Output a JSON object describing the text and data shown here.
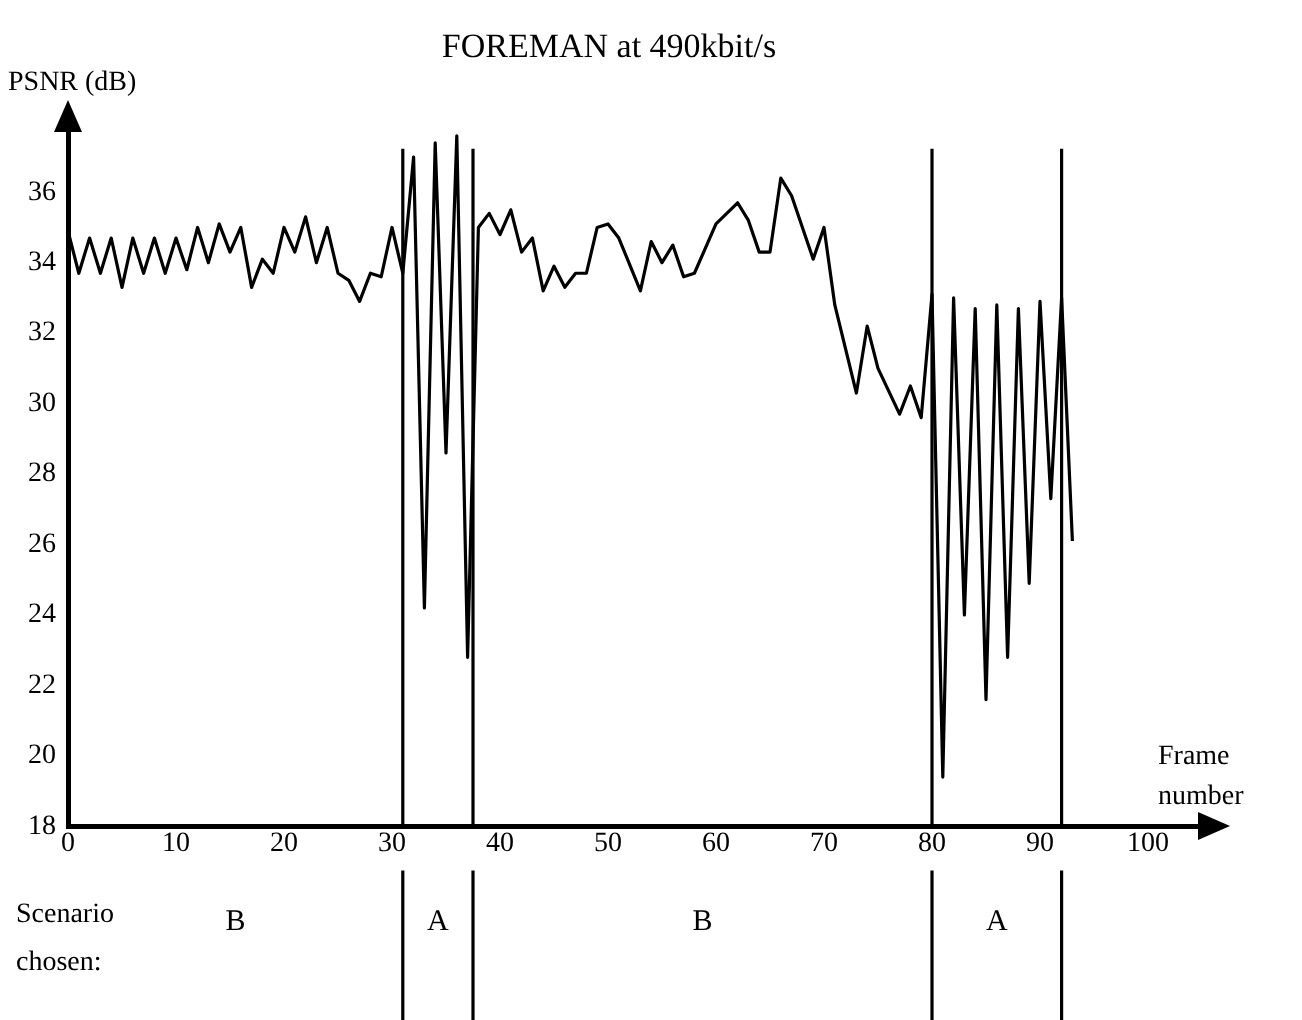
{
  "chart_data": {
    "type": "line",
    "title": "FOREMAN at 490kbit/s",
    "xlabel": "Frame number",
    "ylabel": "PSNR (dB)",
    "annotations": [
      "Scenario chosen:",
      "B",
      "A",
      "B",
      "A"
    ],
    "xlim": [
      0,
      105
    ],
    "xticks": [
      0,
      10,
      20,
      30,
      40,
      50,
      60,
      70,
      80,
      90,
      100
    ],
    "ylim": [
      18,
      37.8
    ],
    "yticks": [
      18,
      20,
      22,
      24,
      26,
      28,
      30,
      32,
      34,
      36
    ],
    "grid": false,
    "legend": false,
    "marker": "none",
    "line_style": "solid",
    "ref_lines": [
      {
        "axis": "x",
        "value": 31
      },
      {
        "axis": "x",
        "value": 37.5
      },
      {
        "axis": "x",
        "value": 80
      },
      {
        "axis": "x",
        "value": 92
      }
    ],
    "series": [
      {
        "color": "#000000",
        "x": [
          0,
          1,
          2,
          3,
          4,
          5,
          6,
          7,
          8,
          9,
          10,
          11,
          12,
          13,
          14,
          15,
          16,
          17,
          18,
          19,
          20,
          21,
          22,
          23,
          24,
          25,
          26,
          27,
          28,
          29,
          30,
          31,
          32,
          33,
          34,
          35,
          36,
          37,
          38,
          39,
          40,
          41,
          42,
          43,
          44,
          45,
          46,
          47,
          48,
          49,
          50,
          51,
          53,
          54,
          55,
          56,
          57,
          58,
          60,
          62,
          63,
          64,
          65,
          66,
          67,
          69,
          70,
          71,
          73,
          74,
          75,
          77,
          78,
          79,
          80,
          81,
          82,
          83,
          84,
          85,
          86,
          87,
          88,
          89,
          90,
          91,
          92,
          93
        ],
        "values": [
          34.9,
          33.7,
          34.7,
          33.7,
          34.7,
          33.3,
          34.7,
          33.7,
          34.7,
          33.7,
          34.7,
          33.8,
          35.0,
          34.0,
          35.1,
          34.3,
          35.0,
          33.3,
          34.1,
          33.7,
          35.0,
          34.3,
          35.3,
          34.0,
          35.0,
          33.7,
          33.5,
          32.9,
          33.7,
          33.6,
          35.0,
          33.7,
          37.0,
          24.2,
          37.4,
          28.6,
          37.6,
          22.8,
          35.0,
          35.4,
          34.8,
          35.5,
          34.3,
          34.7,
          33.2,
          33.9,
          33.3,
          33.7,
          33.7,
          35.0,
          35.1,
          34.7,
          33.2,
          34.6,
          34.0,
          34.5,
          33.6,
          33.7,
          35.1,
          35.7,
          35.2,
          34.3,
          34.3,
          36.4,
          35.9,
          34.1,
          35.0,
          32.8,
          30.3,
          32.2,
          31.0,
          29.7,
          30.5,
          29.6,
          33.1,
          19.4,
          33.0,
          24.0,
          32.7,
          21.6,
          32.8,
          22.8,
          32.7,
          24.9,
          32.9,
          27.3,
          33.0,
          26.1
        ]
      }
    ]
  }
}
